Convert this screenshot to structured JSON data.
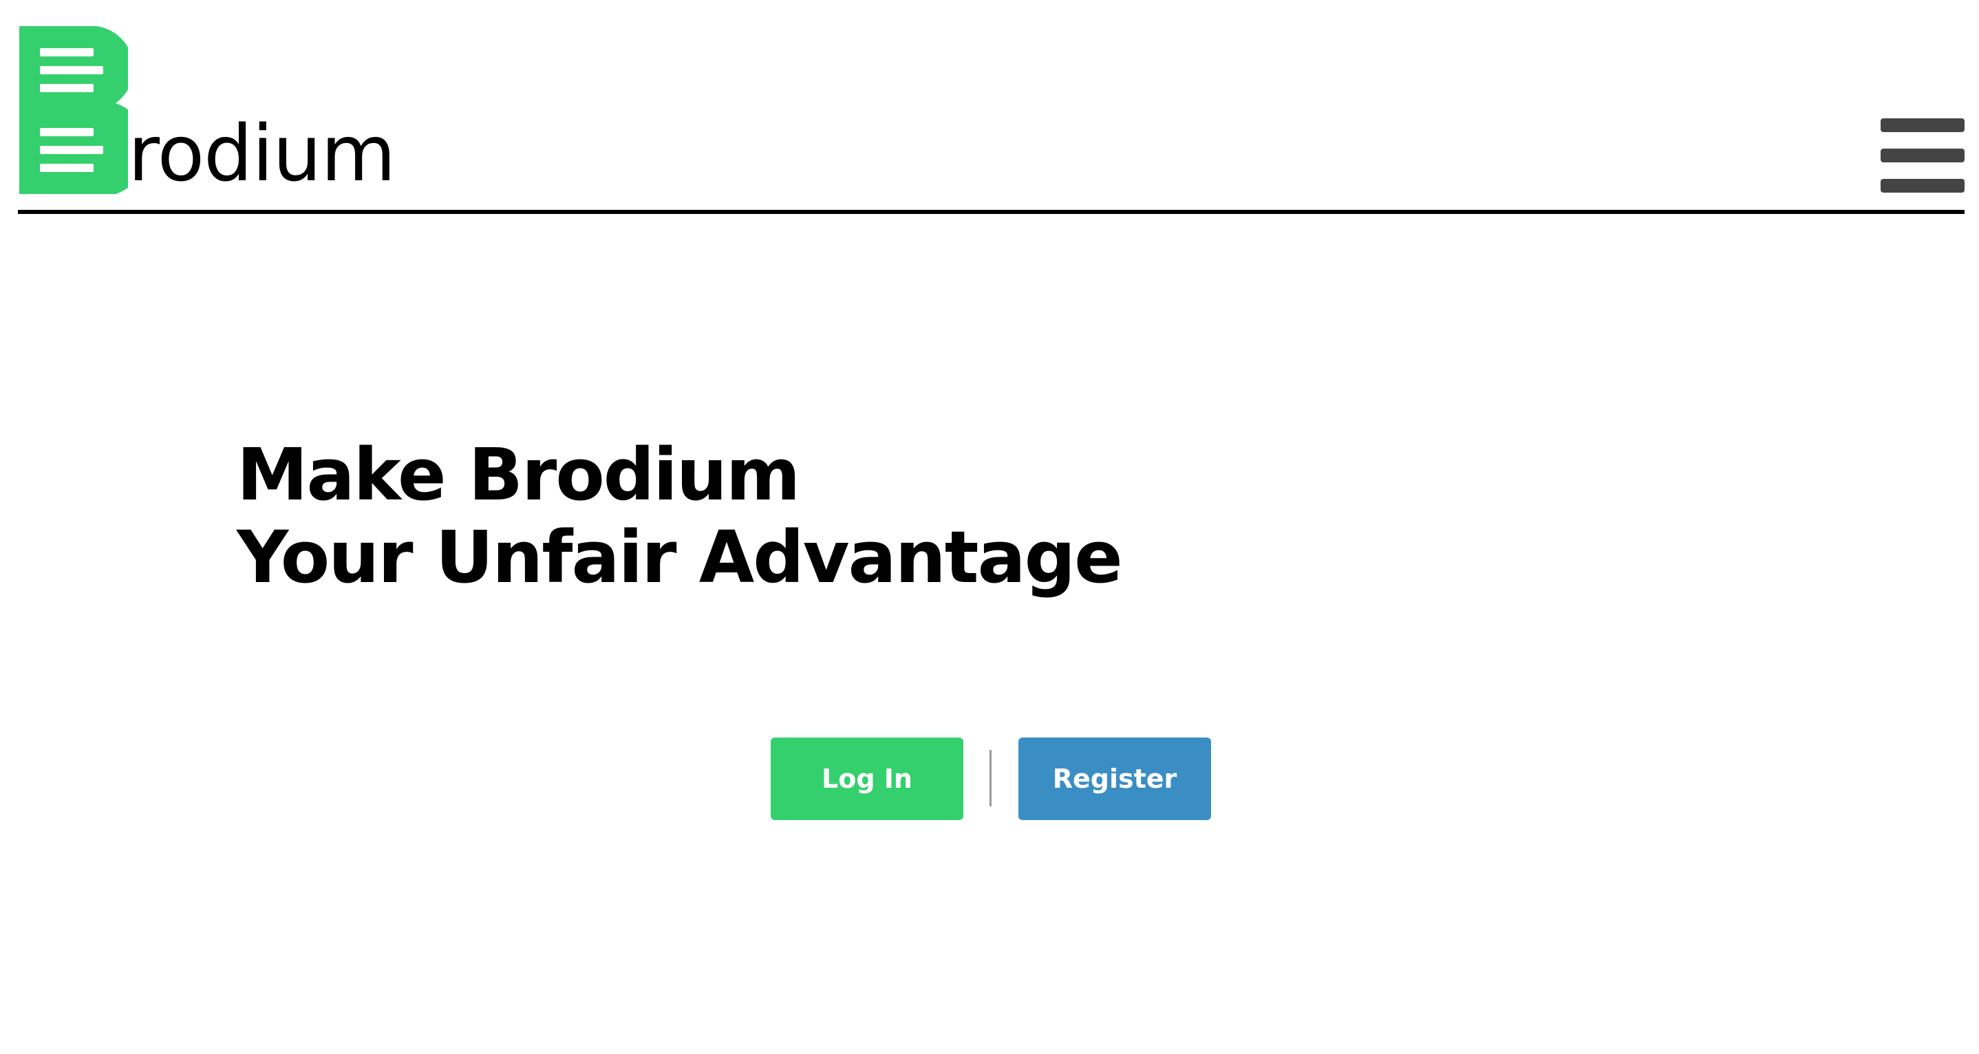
{
  "header": {
    "logo_letter": "B",
    "logo_text": "rodium",
    "menu_icon": "hamburger-menu-icon"
  },
  "hero": {
    "headline_line1": "Make Brodium",
    "headline_line2": "Your Unfair Advantage"
  },
  "actions": {
    "login_label": "Log In",
    "register_label": "Register"
  },
  "colors": {
    "brand_green": "#35d06e",
    "register_blue": "#3a8ec3",
    "menu_icon": "#444444",
    "text": "#000000",
    "background": "#ffffff"
  }
}
